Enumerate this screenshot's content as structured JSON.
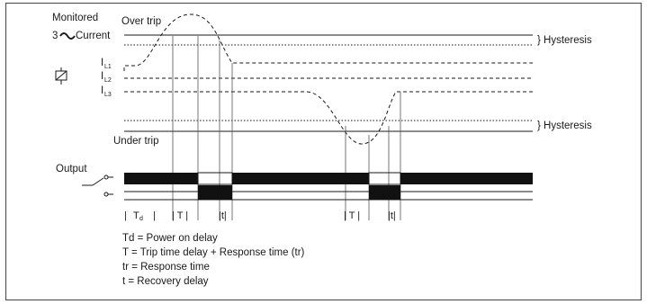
{
  "labels": {
    "monitored": "Monitored",
    "current": "Current",
    "current_prefix": "3",
    "over_trip": "Over trip",
    "under_trip": "Under trip",
    "hysteresis_top": "} Hysteresis",
    "hysteresis_bottom": "} Hysteresis",
    "output": "Output",
    "phase_prefix": "I",
    "l1": "L1",
    "l2": "L2",
    "l3": "L3"
  },
  "timing": {
    "td_main": "T",
    "td_sub": "d",
    "t1": "| T |",
    "r1": "|t|",
    "t2": "| T |",
    "r2": "|t|"
  },
  "legend": [
    "Td = Power on delay",
    "T = Trip time delay + Response time (tr)",
    "tr = Response time",
    "t = Recovery delay"
  ],
  "colors": {
    "line": "#1a1a1a",
    "frame": "#404040",
    "background": "#ffffff"
  }
}
